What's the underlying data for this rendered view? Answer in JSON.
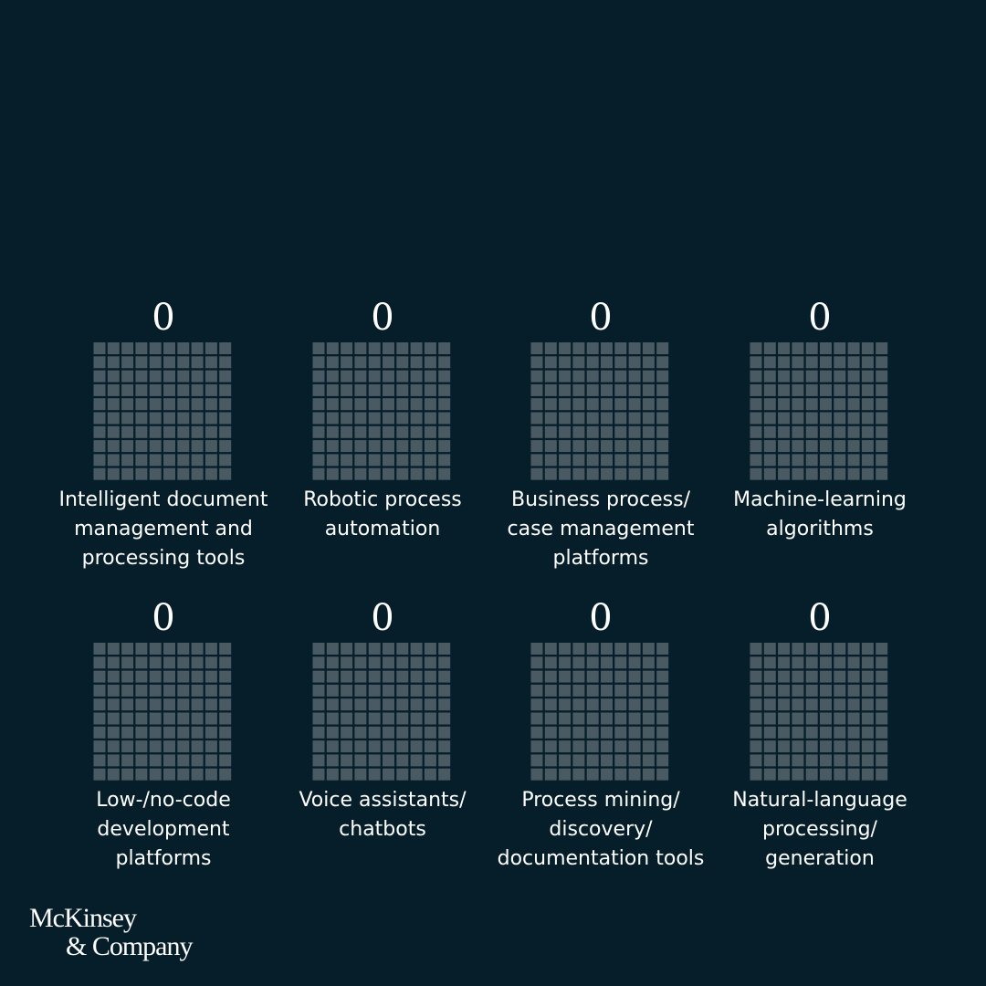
{
  "chart_data": {
    "type": "waffle",
    "color": "#4a5a63",
    "categories": [
      "Intelligent document\nmanagement and\nprocessing tools",
      "Robotic process\nautomation",
      "Business process/\ncase management\nplatforms",
      "Machine-learning\nalgorithms",
      "Low-/no-code\ndevelopment\nplatforms",
      "Voice assistants/\nchatbots",
      "Process mining/\ndiscovery/\ndocumentation tools",
      "Natural-language\nprocessing/\ngeneration"
    ],
    "values": [
      0,
      0,
      0,
      0,
      0,
      0,
      0,
      0
    ]
  },
  "brand": {
    "line1": "McKinsey",
    "line2": "& Company"
  }
}
